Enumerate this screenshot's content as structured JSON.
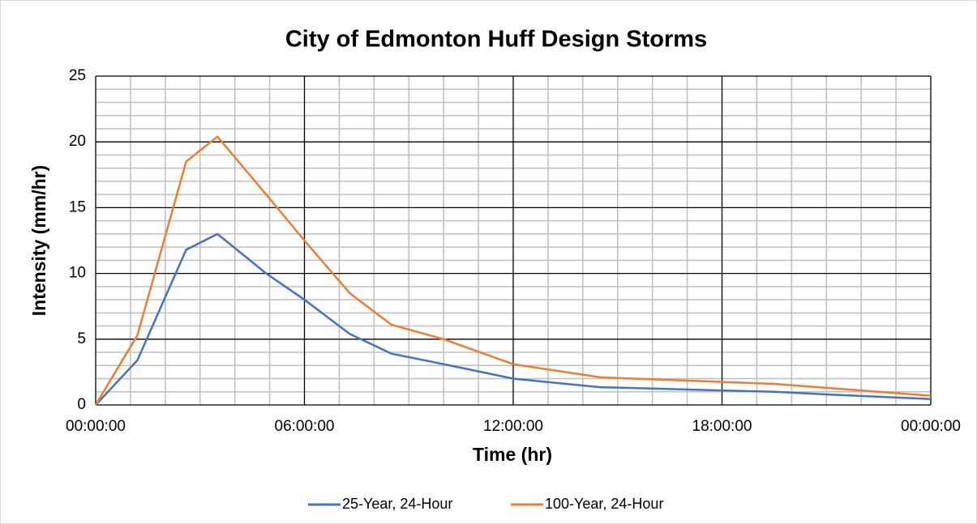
{
  "chart_data": {
    "type": "line",
    "title": "City of Edmonton Huff Design Storms",
    "xlabel": "Time (hr)",
    "ylabel": "Intensity (mm/hr)",
    "x": [
      0,
      1.2,
      2.6,
      3.5,
      4.9,
      6,
      7.3,
      8.5,
      10,
      12,
      14.5,
      16,
      18,
      19.5,
      21,
      24
    ],
    "series": [
      {
        "name": "25-Year, 24-Hour",
        "color": "#4472c4",
        "values": [
          0,
          3.4,
          11.8,
          13,
          10,
          8,
          5.4,
          3.9,
          3.1,
          2,
          1.35,
          1.25,
          1.1,
          1.0,
          0.8,
          0.45
        ]
      },
      {
        "name": "100-Year, 24-Hour",
        "color": "#ed7d31",
        "values": [
          0,
          5.3,
          18.5,
          20.4,
          16,
          12.5,
          8.5,
          6.1,
          5.0,
          3.1,
          2.1,
          1.95,
          1.75,
          1.6,
          1.3,
          0.7
        ]
      }
    ],
    "xlim": [
      0,
      24
    ],
    "xticks": [
      {
        "value": 0,
        "label": "00:00:00"
      },
      {
        "value": 6,
        "label": "06:00:00"
      },
      {
        "value": 12,
        "label": "12:00:00"
      },
      {
        "value": 18,
        "label": "18:00:00"
      },
      {
        "value": 24,
        "label": "00:00:00"
      }
    ],
    "xminorticks": [
      1,
      2,
      3,
      4,
      5,
      7,
      8,
      9,
      10,
      11,
      13,
      14,
      15,
      16,
      17,
      19,
      20,
      21,
      22,
      23
    ],
    "ylim": [
      0,
      25
    ],
    "yticks": [
      0,
      5,
      10,
      15,
      20,
      25
    ],
    "yminorticks": [
      1,
      2,
      3,
      4,
      6,
      7,
      8,
      9,
      11,
      12,
      13,
      14,
      16,
      17,
      18,
      19,
      21,
      22,
      23,
      24
    ],
    "grid": true,
    "legend": "bottom"
  }
}
